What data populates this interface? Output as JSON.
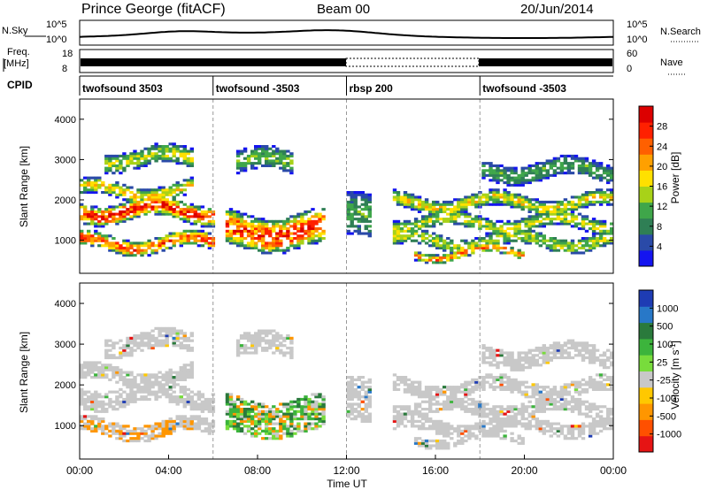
{
  "header": {
    "station": "Prince George (fitACF)",
    "beam": "Beam 00",
    "date": "20/Jun/2014"
  },
  "strip": {
    "nsky_label": "N.Sky",
    "nsearch_label": "N.Search",
    "nsky_ticks": [
      "10^5",
      "10^0"
    ],
    "nsearch_ticks": [
      "10^5",
      "10^0"
    ],
    "freq_label_1": "Freq.",
    "freq_label_2": "[MHz]",
    "freq_ticks": [
      "18",
      "8"
    ],
    "nave_label": "Nave",
    "nave_ticks": [
      "60",
      "0"
    ],
    "cpid_label": "CPID"
  },
  "modes": [
    {
      "name": "twofsound 3503",
      "start": 0
    },
    {
      "name": "twofsound -3503",
      "start": 6
    },
    {
      "name": "rbsp 200",
      "start": 12
    },
    {
      "name": "twofsound -3503",
      "start": 18
    }
  ],
  "chart_data": [
    {
      "type": "heatmap",
      "ylabel": "Slant Range [km]",
      "ylim": [
        180,
        4500
      ],
      "yticks": [
        "1000",
        "2000",
        "3000",
        "4000"
      ],
      "xlim": [
        0,
        24
      ],
      "colorbar": {
        "label": "Power [dB]",
        "ticks": [
          "4",
          "8",
          "12",
          "16",
          "20",
          "24",
          "28"
        ],
        "colors": [
          "#1414f0",
          "#2a4aa8",
          "#2f7f55",
          "#3fa64a",
          "#a8d218",
          "#ffe000",
          "#ffa000",
          "#ff6000",
          "#ff2000",
          "#dc0000"
        ]
      }
    },
    {
      "type": "heatmap",
      "ylabel": "Slant Range [km]",
      "ylim": [
        180,
        4500
      ],
      "yticks": [
        "1000",
        "2000",
        "3000",
        "4000"
      ],
      "xlim": [
        0,
        24
      ],
      "colorbar": {
        "label": "Velocity [m s-1]",
        "label_main": "Velocity [m s",
        "label_sup": "-1",
        "label_end": "]",
        "ticks": [
          "1000",
          "500",
          "100",
          "25",
          "-25",
          "-100",
          "-500",
          "-1000"
        ],
        "colors": [
          "#1e3cb4",
          "#2878c8",
          "#2a7a3c",
          "#3cb43c",
          "#78dc3c",
          "#c8c8c8",
          "#ffc800",
          "#ff9600",
          "#ff5000",
          "#e61414"
        ]
      }
    }
  ],
  "xaxis": {
    "label": "Time UT",
    "ticks": [
      "00:00",
      "04:00",
      "08:00",
      "12:00",
      "16:00",
      "20:00",
      "00:00"
    ]
  }
}
